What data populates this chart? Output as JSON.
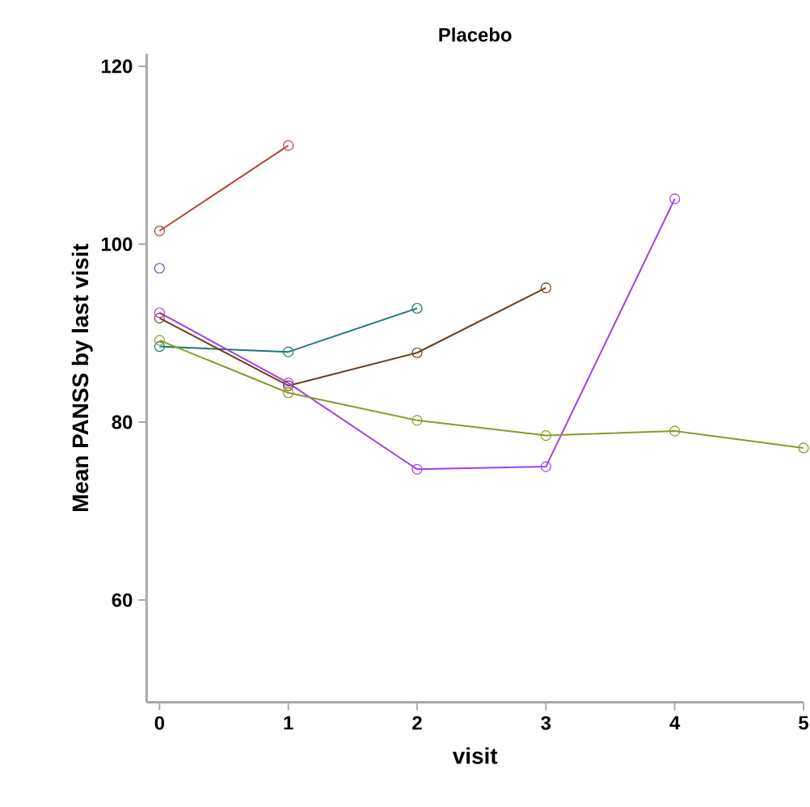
{
  "chart_data": {
    "type": "line",
    "title": "Placebo",
    "xlabel": "visit",
    "ylabel": "Mean PANSS by last visit",
    "xlim": [
      -0.1,
      5
    ],
    "ylim": [
      48.5,
      121.4
    ],
    "xticks": [
      0,
      1,
      2,
      3,
      4,
      5
    ],
    "yticks": [
      60,
      80,
      100,
      120
    ],
    "grid": false,
    "marker": "circle",
    "line_style": "solid",
    "series": [
      {
        "color": "#4b5db0",
        "x": [
          0
        ],
        "values": [
          97.3
        ]
      },
      {
        "color": "#b5473a",
        "x": [
          0,
          1
        ],
        "values": [
          101.5,
          111.1
        ]
      },
      {
        "color": "#1a7a72",
        "x": [
          0,
          1,
          2
        ],
        "values": [
          88.5,
          87.9,
          92.8
        ]
      },
      {
        "color": "#6b3e1e",
        "x": [
          0,
          1,
          2,
          3
        ],
        "values": [
          91.7,
          84.1,
          87.8,
          95.1
        ]
      },
      {
        "color": "#a040e8",
        "x": [
          0,
          1,
          2,
          3,
          4
        ],
        "values": [
          92.3,
          84.4,
          74.7,
          75.0,
          105.1
        ]
      },
      {
        "color": "#8a9a28",
        "x": [
          0,
          1,
          2,
          3,
          4,
          5
        ],
        "values": [
          89.2,
          83.3,
          80.2,
          78.5,
          79.0,
          77.1
        ]
      }
    ]
  }
}
